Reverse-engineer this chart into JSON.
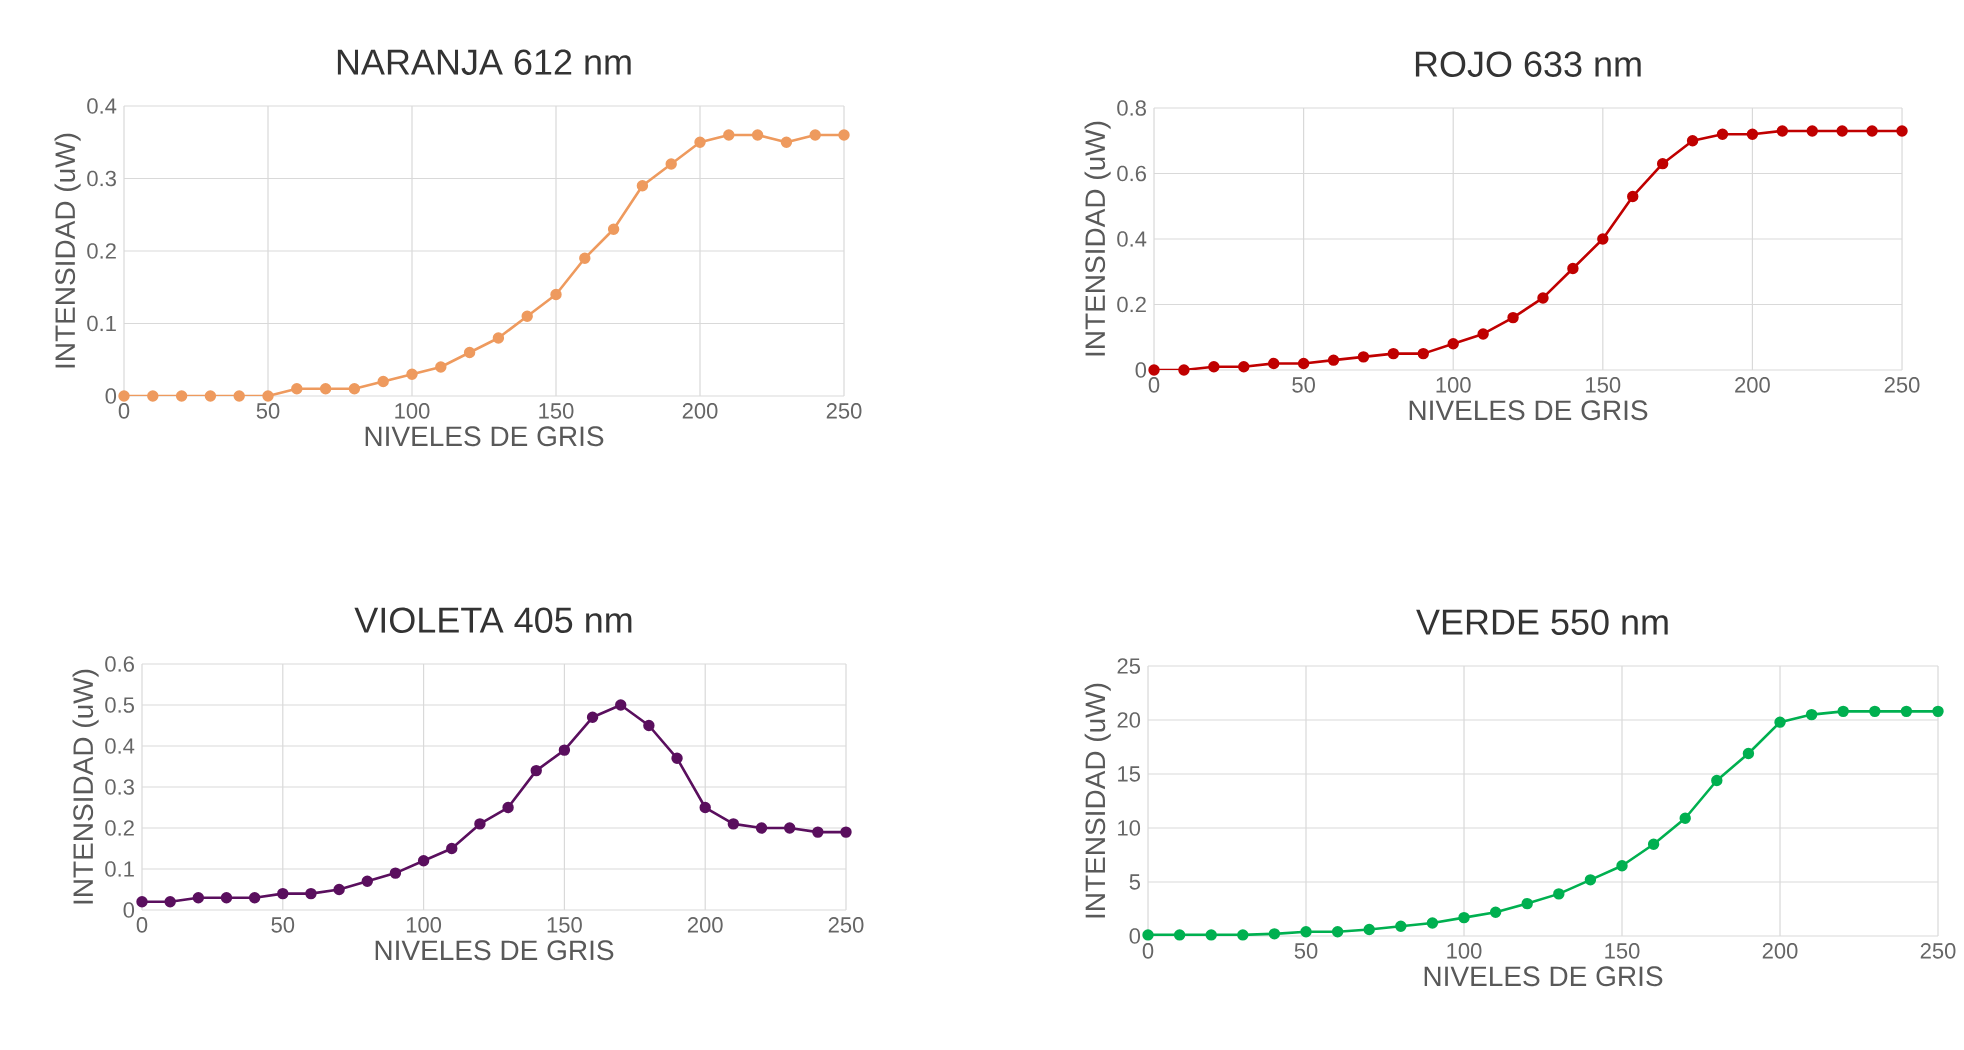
{
  "chart_data": [
    {
      "type": "line",
      "title": "NARANJA 612 nm",
      "xlabel": "NIVELES DE GRIS",
      "ylabel": "INTENSIDAD (uW)",
      "x": [
        0,
        10,
        20,
        30,
        40,
        50,
        60,
        70,
        80,
        90,
        100,
        110,
        120,
        130,
        140,
        150,
        160,
        170,
        180,
        190,
        200,
        210,
        220,
        230,
        240,
        250
      ],
      "series": [
        {
          "color": "#ee9a5e",
          "values": [
            0,
            0,
            0,
            0,
            0,
            0,
            0.01,
            0.01,
            0.01,
            0.02,
            0.03,
            0.04,
            0.06,
            0.08,
            0.11,
            0.14,
            0.19,
            0.23,
            0.29,
            0.32,
            0.35,
            0.36,
            0.36,
            0.35,
            0.36,
            0.36
          ]
        }
      ],
      "xlim": [
        0,
        250
      ],
      "xticks": [
        0,
        50,
        100,
        150,
        200,
        250
      ],
      "ylim": [
        0,
        0.4
      ],
      "yticks": [
        0,
        0.1,
        0.2,
        0.3,
        0.4
      ],
      "grid": true,
      "marker": "circle",
      "line_style": "solid"
    },
    {
      "type": "line",
      "title": "ROJO 633 nm",
      "xlabel": "NIVELES DE GRIS",
      "ylabel": "INTENSIDAD (uW)",
      "x": [
        0,
        10,
        20,
        30,
        40,
        50,
        60,
        70,
        80,
        90,
        100,
        110,
        120,
        130,
        140,
        150,
        160,
        170,
        180,
        190,
        200,
        210,
        220,
        230,
        240,
        250
      ],
      "series": [
        {
          "color": "#c00000",
          "values": [
            0,
            0,
            0.01,
            0.01,
            0.02,
            0.02,
            0.03,
            0.04,
            0.05,
            0.05,
            0.08,
            0.11,
            0.16,
            0.22,
            0.31,
            0.4,
            0.53,
            0.63,
            0.7,
            0.72,
            0.72,
            0.73,
            0.73,
            0.73,
            0.73,
            0.73
          ]
        }
      ],
      "xlim": [
        0,
        250
      ],
      "xticks": [
        0,
        50,
        100,
        150,
        200,
        250
      ],
      "ylim": [
        0,
        0.8
      ],
      "yticks": [
        0,
        0.2,
        0.4,
        0.6,
        0.8
      ],
      "grid": true,
      "marker": "circle",
      "line_style": "solid"
    },
    {
      "type": "line",
      "title": "VIOLETA 405 nm",
      "xlabel": "NIVELES DE GRIS",
      "ylabel": "INTENSIDAD (uW)",
      "x": [
        0,
        10,
        20,
        30,
        40,
        50,
        60,
        70,
        80,
        90,
        100,
        110,
        120,
        130,
        140,
        150,
        160,
        170,
        180,
        190,
        200,
        210,
        220,
        230,
        240,
        250
      ],
      "series": [
        {
          "color": "#5a0f5e",
          "values": [
            0.02,
            0.02,
            0.03,
            0.03,
            0.03,
            0.04,
            0.04,
            0.05,
            0.07,
            0.09,
            0.12,
            0.15,
            0.21,
            0.25,
            0.34,
            0.39,
            0.47,
            0.5,
            0.45,
            0.37,
            0.25,
            0.21,
            0.2,
            0.2,
            0.19,
            0.19
          ]
        }
      ],
      "xlim": [
        0,
        250
      ],
      "xticks": [
        0,
        50,
        100,
        150,
        200,
        250
      ],
      "ylim": [
        0,
        0.6
      ],
      "yticks": [
        0,
        0.1,
        0.2,
        0.3,
        0.4,
        0.5,
        0.6
      ],
      "grid": true,
      "marker": "circle",
      "line_style": "solid"
    },
    {
      "type": "line",
      "title": "VERDE 550 nm",
      "xlabel": "NIVELES DE GRIS",
      "ylabel": "INTENSIDAD (uW)",
      "x": [
        0,
        10,
        20,
        30,
        40,
        50,
        60,
        70,
        80,
        90,
        100,
        110,
        120,
        130,
        140,
        150,
        160,
        170,
        180,
        190,
        200,
        210,
        220,
        230,
        240,
        250
      ],
      "series": [
        {
          "color": "#00b050",
          "values": [
            0.1,
            0.1,
            0.1,
            0.1,
            0.2,
            0.4,
            0.4,
            0.6,
            0.9,
            1.2,
            1.7,
            2.2,
            3,
            3.9,
            5.2,
            6.5,
            8.5,
            10.9,
            14.4,
            16.9,
            19.8,
            20.5,
            20.8,
            20.8,
            20.8,
            20.8
          ]
        }
      ],
      "xlim": [
        0,
        250
      ],
      "xticks": [
        0,
        50,
        100,
        150,
        200,
        250
      ],
      "ylim": [
        0,
        25
      ],
      "yticks": [
        0,
        5,
        10,
        15,
        20,
        25
      ],
      "grid": true,
      "marker": "circle",
      "line_style": "solid"
    }
  ]
}
